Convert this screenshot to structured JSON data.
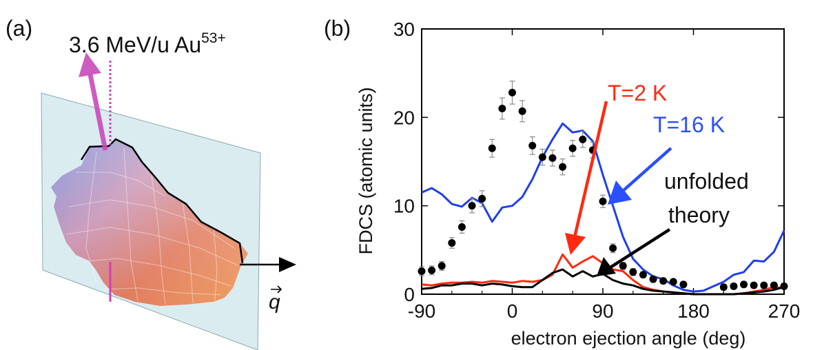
{
  "panel_a": {
    "label": "(a)",
    "beam_label_base": "3.6 MeV/u Au",
    "beam_label_charge": "53+",
    "vector_label": "q"
  },
  "panel_b": {
    "label": "(b)"
  },
  "chart_data": {
    "type": "line",
    "xlabel": "electron ejection angle (deg)",
    "ylabel": "FDCS (atomic units)",
    "xlim": [
      -90,
      270
    ],
    "ylim": [
      0,
      30
    ],
    "xticks": [
      -90,
      0,
      90,
      180,
      270
    ],
    "yticks": [
      0,
      10,
      20,
      30
    ],
    "grid": false,
    "annotations": [
      {
        "text": "T=2 K",
        "color": "#ff2a10"
      },
      {
        "text": "T=16 K",
        "color": "#2a4fff"
      },
      {
        "text": "unfolded",
        "color": "#000000"
      },
      {
        "text": "theory",
        "color": "#000000"
      }
    ],
    "series": [
      {
        "kind": "line",
        "color": "#1f3fe8",
        "x": [
          -90,
          -80,
          -70,
          -60,
          -50,
          -40,
          -30,
          -20,
          -10,
          0,
          10,
          20,
          30,
          40,
          50,
          60,
          70,
          80,
          90,
          100,
          110,
          120,
          130,
          140,
          150,
          160,
          170,
          180,
          190,
          200,
          210,
          220,
          230,
          240,
          250,
          260,
          270
        ],
        "y": [
          11.5,
          12.0,
          11.3,
          10.2,
          9.9,
          10.9,
          10.3,
          8.2,
          9.8,
          10.0,
          11.0,
          13.0,
          15.5,
          17.5,
          19.3,
          18.3,
          18.5,
          17.3,
          13.5,
          10.0,
          6.5,
          4.0,
          2.8,
          2.0,
          1.7,
          1.0,
          0.5,
          0.3,
          0.4,
          0.9,
          1.4,
          2.2,
          2.5,
          3.8,
          3.7,
          4.8,
          7.2
        ]
      },
      {
        "kind": "line",
        "color": "#ff2a10",
        "x": [
          -90,
          -80,
          -70,
          -60,
          -50,
          -40,
          -30,
          -20,
          -10,
          0,
          10,
          20,
          30,
          40,
          50,
          60,
          70,
          80,
          90,
          100,
          110,
          120,
          130,
          140,
          150,
          160,
          170,
          180,
          190,
          200,
          210,
          220,
          230,
          240,
          250,
          260,
          270
        ],
        "y": [
          1.1,
          1.0,
          1.2,
          1.3,
          1.3,
          1.4,
          1.3,
          1.5,
          1.4,
          1.3,
          1.5,
          1.4,
          1.6,
          2.2,
          4.5,
          3.0,
          3.7,
          4.3,
          3.5,
          2.8,
          2.6,
          1.6,
          0.8,
          0.5,
          0.3,
          0.2,
          0.1,
          0.0,
          0.0,
          0.0,
          0.0,
          0.0,
          0.1,
          0.3,
          0.5,
          0.8,
          0.7
        ]
      },
      {
        "kind": "line",
        "color": "#000000",
        "x": [
          -90,
          -80,
          -70,
          -60,
          -50,
          -40,
          -30,
          -20,
          -10,
          0,
          10,
          20,
          30,
          40,
          50,
          60,
          70,
          80,
          90,
          100,
          110,
          120,
          130,
          140,
          150,
          160,
          170,
          180,
          190,
          200,
          210,
          220,
          230,
          240,
          250,
          260,
          270
        ],
        "y": [
          0.6,
          0.7,
          1.0,
          1.0,
          1.2,
          1.2,
          1.0,
          1.2,
          1.1,
          0.9,
          0.8,
          0.8,
          1.6,
          2.4,
          2.8,
          2.0,
          2.6,
          2.0,
          2.3,
          1.6,
          1.2,
          1.0,
          0.6,
          0.4,
          0.3,
          0.2,
          0.1,
          0.0,
          0.0,
          0.0,
          0.0,
          0.0,
          0.1,
          0.2,
          0.3,
          0.5,
          0.8
        ]
      },
      {
        "kind": "points",
        "color": "#000000",
        "x": [
          -90,
          -80,
          -70,
          -60,
          -50,
          -40,
          -30,
          -20,
          -10,
          0,
          10,
          20,
          30,
          40,
          50,
          60,
          70,
          80,
          90,
          100,
          110,
          120,
          130,
          140,
          150,
          160,
          170,
          210,
          220,
          230,
          240,
          250,
          260,
          270
        ],
        "y": [
          2.6,
          2.7,
          3.2,
          5.8,
          7.6,
          10.0,
          10.8,
          16.5,
          21.0,
          22.8,
          20.7,
          16.8,
          15.5,
          15.4,
          14.4,
          16.5,
          17.5,
          16.3,
          10.5,
          5.2,
          3.2,
          2.5,
          2.2,
          1.7,
          1.5,
          1.4,
          1.1,
          0.8,
          0.9,
          1.1,
          1.0,
          1.0,
          1.0,
          0.9
        ],
        "err": [
          0.5,
          0.5,
          0.5,
          0.6,
          0.7,
          0.8,
          0.9,
          1.0,
          1.2,
          1.3,
          1.2,
          1.0,
          0.9,
          0.9,
          0.9,
          0.9,
          0.9,
          0.9,
          0.7,
          0.5,
          0.4,
          0.4,
          0.3,
          0.3,
          0.3,
          0.3,
          0.3,
          0.3,
          0.3,
          0.3,
          0.3,
          0.3,
          0.3,
          0.3
        ]
      }
    ]
  }
}
